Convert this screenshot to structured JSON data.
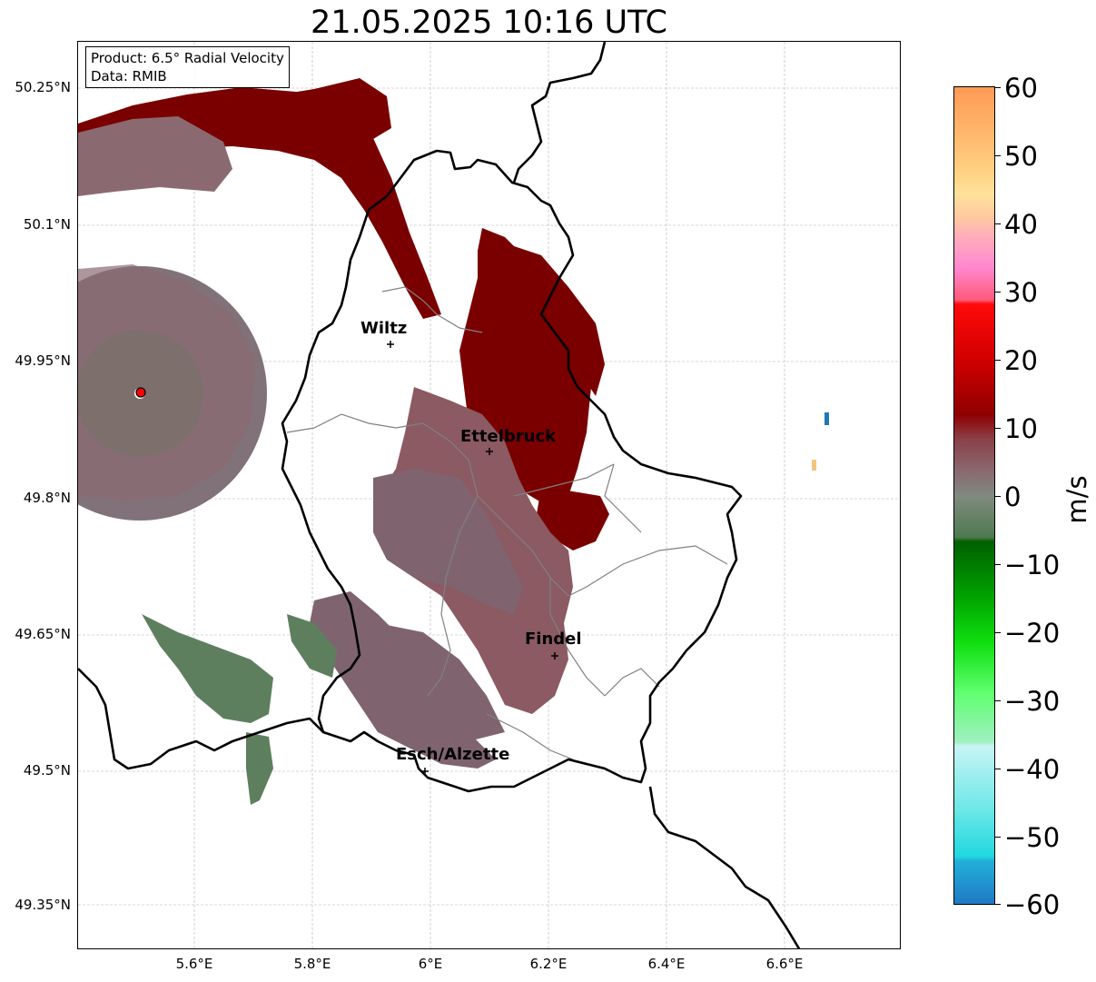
{
  "title": "21.05.2025 10:16 UTC",
  "info": {
    "product": "Product: 6.5° Radial Velocity",
    "data_source": "Data: RMIB"
  },
  "axes": {
    "y_ticks": [
      "50.25°N",
      "50.1°N",
      "49.95°N",
      "49.8°N",
      "49.65°N",
      "49.5°N",
      "49.35°N"
    ],
    "x_ticks": [
      "5.6°E",
      "5.8°E",
      "6°E",
      "6.2°E",
      "6.4°E",
      "6.6°E"
    ]
  },
  "cities": [
    "Wiltz",
    "Ettelbruck",
    "Findel",
    "Esch/Alzette"
  ],
  "colorbar": {
    "label": "m/s",
    "ticks": [
      "60",
      "50",
      "40",
      "30",
      "20",
      "10",
      "0",
      "−10",
      "−20",
      "−30",
      "−40",
      "−50",
      "−60"
    ],
    "range": [
      -60,
      60
    ]
  },
  "colors": {
    "strong_receding": "#8b0000",
    "weak_receding": "#8b5a62",
    "weak_approaching": "#5a7a5a",
    "radar_marker": "#ff0000",
    "border": "#000000",
    "canton_lines": "#808080"
  }
}
